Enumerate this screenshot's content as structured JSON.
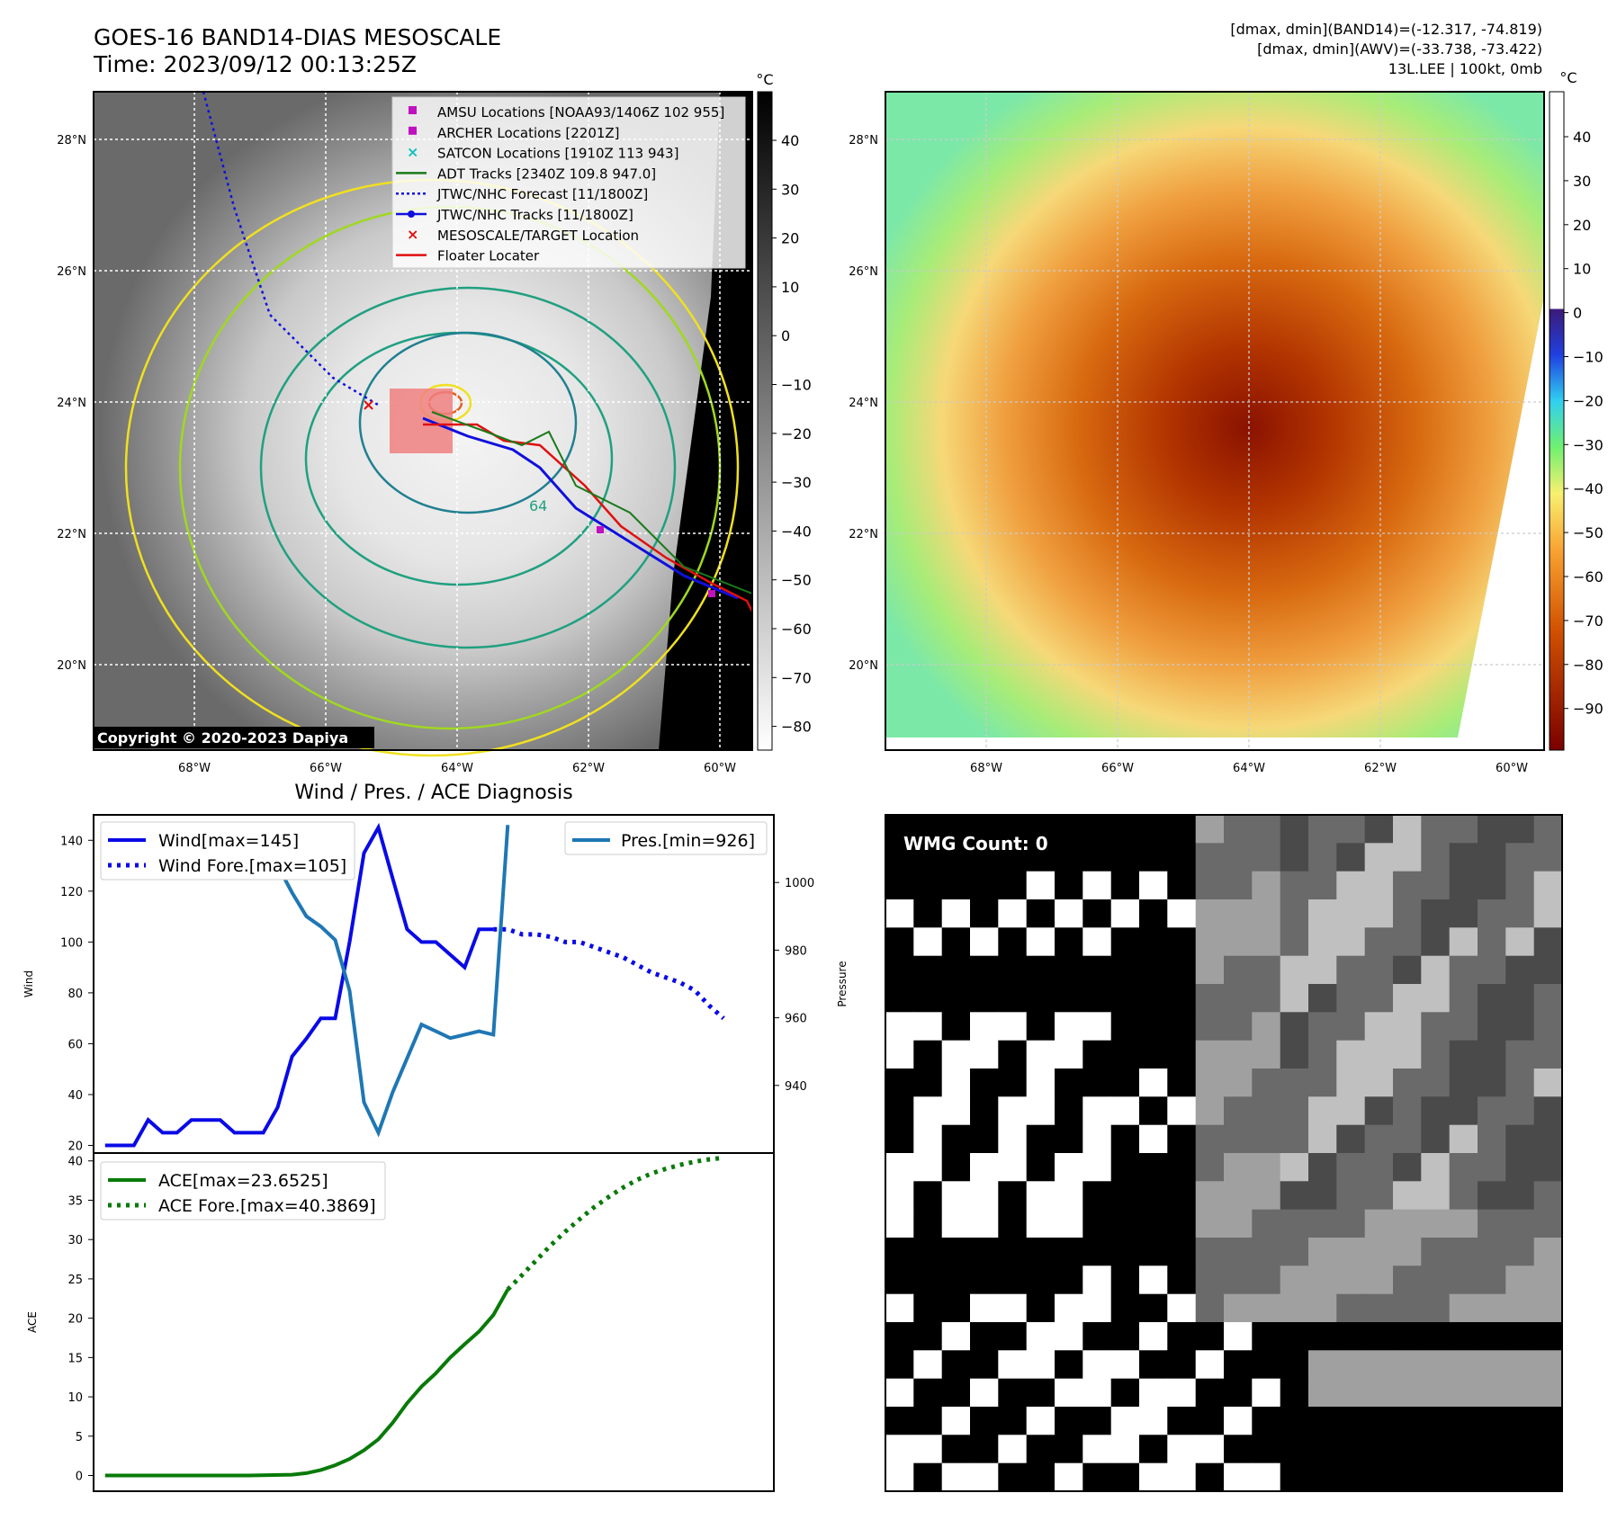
{
  "header": {
    "title_line1": "GOES-16 BAND14-DIAS MESOSCALE",
    "title_line2": "Time: 2023/09/12 00:13:25Z",
    "right_line1": "[dmax, dmin](BAND14)=(-12.317, -74.819)",
    "right_line2": "[dmax, dmin](AWV)=(-33.738, -73.422)",
    "right_line3": "13L.LEE | 100kt, 0mb"
  },
  "colors": {
    "wind": "#0a0ae6",
    "pressure": "#1f77b4",
    "ace": "#087a08",
    "track_red": "#e01010",
    "forecast_blue": "#1010dd",
    "adt_green": "#1a7a1a",
    "satcon_cyan": "#10c0c0",
    "amsu_magenta": "#c010c0"
  },
  "map_panel": {
    "lat_labels": [
      "28°N",
      "26°N",
      "24°N",
      "22°N",
      "20°N"
    ],
    "lon_labels": [
      "68°W",
      "66°W",
      "64°W",
      "62°W",
      "60°W"
    ],
    "copyright": "Copyright © 2020-2023 Dapiya",
    "legend": [
      {
        "label": "AMSU Locations [NOAA93/1406Z 102 955]",
        "marker": "square",
        "color": "#c010c0"
      },
      {
        "label": "ARCHER Locations [2201Z]",
        "marker": "square",
        "color": "#c010c0"
      },
      {
        "label": "SATCON Locations [1910Z 113 943]",
        "marker": "x",
        "color": "#10c0c0"
      },
      {
        "label": "ADT Tracks [2340Z 109.8 947.0]",
        "marker": "line",
        "color": "#1a7a1a"
      },
      {
        "label": "JTWC/NHC Forecast [11/1800Z]",
        "marker": "dotted",
        "color": "#1010dd"
      },
      {
        "label": "JTWC/NHC Tracks [11/1800Z]",
        "marker": "line-dot",
        "color": "#1010dd"
      },
      {
        "label": "MESOSCALE/TARGET Location",
        "marker": "x",
        "color": "#e01010"
      },
      {
        "label": "Floater Locater",
        "marker": "line",
        "color": "#e01010"
      }
    ],
    "colorbar_unit": "°C",
    "colorbar_ticks": [
      "40",
      "30",
      "20",
      "10",
      "0",
      "−10",
      "−20",
      "−30",
      "−40",
      "−50",
      "−60",
      "−70",
      "−80"
    ],
    "contour_label": "64"
  },
  "awv_panel": {
    "lat_labels": [
      "28°N",
      "26°N",
      "24°N",
      "22°N",
      "20°N"
    ],
    "lon_labels": [
      "68°W",
      "66°W",
      "64°W",
      "62°W",
      "60°W"
    ],
    "colorbar_unit": "°C",
    "colorbar_ticks": [
      "40",
      "30",
      "20",
      "10",
      "0",
      "−10",
      "−20",
      "−30",
      "−40",
      "−50",
      "−60",
      "−70",
      "−80",
      "−90"
    ]
  },
  "chart_data": [
    {
      "type": "line",
      "title": "Wind / Pres. / ACE Diagnosis",
      "ylabel": "Wind",
      "y2label": "Pressure",
      "ylim": [
        17,
        150
      ],
      "y2lim": [
        920,
        1020
      ],
      "yticks": [
        "20",
        "40",
        "60",
        "80",
        "100",
        "120",
        "140"
      ],
      "y2ticks": [
        "940",
        "960",
        "980",
        "1000"
      ],
      "series": [
        {
          "name": "Wind[max=145]",
          "axis": "left",
          "style": "solid",
          "x": [
            0,
            1,
            2,
            3,
            4,
            5,
            6,
            7,
            8,
            9,
            10,
            11,
            12,
            13,
            14,
            15,
            16,
            17,
            18,
            19,
            20,
            21,
            22,
            23,
            24,
            25,
            26,
            27
          ],
          "values": [
            20,
            20,
            20,
            30,
            25,
            25,
            30,
            30,
            30,
            25,
            25,
            25,
            35,
            55,
            62,
            70,
            70,
            100,
            135,
            145,
            125,
            105,
            100,
            100,
            95,
            90,
            105,
            105
          ]
        },
        {
          "name": "Wind Fore.[max=105]",
          "axis": "left",
          "style": "dotted",
          "x": [
            27,
            28,
            29,
            30,
            31,
            32,
            33,
            34,
            35,
            36,
            37,
            38,
            39,
            40,
            41,
            42,
            43
          ],
          "values": [
            105,
            105,
            103,
            103,
            102,
            100,
            100,
            98,
            96,
            94,
            91,
            88,
            86,
            84,
            81,
            75,
            70
          ]
        },
        {
          "name": "Pres.[min=926]",
          "axis": "right",
          "style": "solid",
          "x": [
            0,
            1,
            2,
            3,
            4,
            5,
            6,
            7,
            8,
            9,
            10,
            11,
            12,
            13,
            14,
            15,
            16,
            17,
            18,
            19,
            20,
            21,
            22,
            23,
            24,
            25,
            26,
            27,
            28
          ],
          "values": [
            1012,
            1012,
            1012,
            1011,
            1011,
            1011,
            1011,
            1012,
            1012,
            1011,
            1010,
            1008,
            1005,
            997,
            990,
            987,
            983,
            968,
            935,
            926,
            938,
            948,
            958,
            956,
            954,
            955,
            956,
            955,
            1017
          ]
        }
      ]
    },
    {
      "type": "line",
      "ylabel": "ACE",
      "ylim": [
        -2,
        41
      ],
      "yticks": [
        "0",
        "5",
        "10",
        "15",
        "20",
        "25",
        "30",
        "35",
        "40"
      ],
      "series": [
        {
          "name": "ACE[max=23.6525]",
          "style": "solid",
          "x": [
            0,
            5,
            10,
            13,
            14,
            15,
            16,
            17,
            18,
            19,
            20,
            21,
            22,
            23,
            24,
            25,
            26,
            27,
            28
          ],
          "values": [
            0,
            0,
            0,
            0.1,
            0.3,
            0.7,
            1.3,
            2.1,
            3.2,
            4.6,
            6.7,
            9.2,
            11.3,
            13.0,
            15.0,
            16.7,
            18.3,
            20.4,
            23.65
          ]
        },
        {
          "name": "ACE Fore.[max=40.3869]",
          "style": "dotted",
          "x": [
            28,
            29,
            30,
            31,
            32,
            33,
            34,
            35,
            36,
            37,
            38,
            39,
            40,
            41,
            42,
            43
          ],
          "values": [
            23.65,
            25.5,
            27.4,
            29.3,
            31.0,
            32.6,
            34.1,
            35.4,
            36.6,
            37.6,
            38.4,
            39.0,
            39.5,
            39.9,
            40.2,
            40.39
          ]
        }
      ]
    }
  ],
  "wmg_panel": {
    "label": "WMG Count: 0"
  }
}
